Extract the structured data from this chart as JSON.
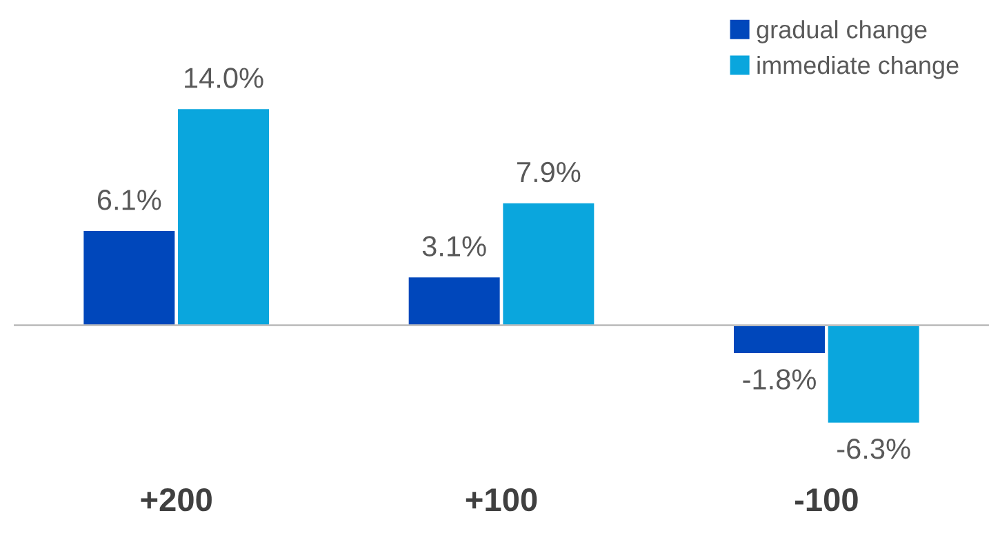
{
  "chart_data": {
    "type": "bar",
    "categories": [
      "+200",
      "+100",
      "-100"
    ],
    "series": [
      {
        "name": "gradual change",
        "color": "#0047bb",
        "values": [
          6.1,
          3.1,
          -1.8
        ],
        "value_labels": [
          "6.1%",
          "3.1%",
          "-1.8%"
        ]
      },
      {
        "name": "immediate change",
        "color": "#0aa6dd",
        "values": [
          14.0,
          7.9,
          -6.3
        ],
        "value_labels": [
          "14.0%",
          "7.9%",
          "-6.3%"
        ]
      }
    ],
    "legend": "top right",
    "grid": false
  }
}
